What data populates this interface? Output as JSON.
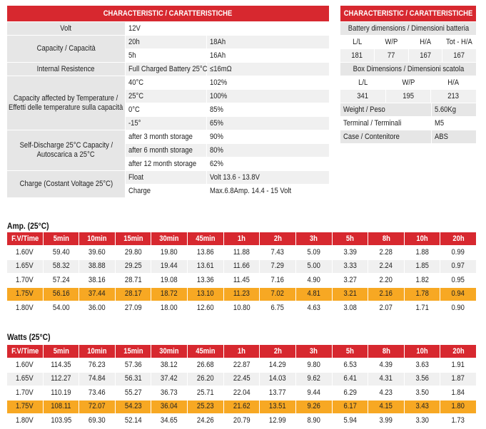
{
  "characteristics": {
    "title": "CHARACTERISTIC / CARATTERISTICHE",
    "groups": [
      {
        "label": [
          "Volt"
        ],
        "rows": [
          [
            "12V"
          ]
        ]
      },
      {
        "label": [
          "Capacity  / Capacità"
        ],
        "rows": [
          [
            "20h",
            "18Ah"
          ],
          [
            "5h",
            "16Ah"
          ]
        ]
      },
      {
        "label": [
          "Internal Resistence"
        ],
        "rows": [
          [
            "Full Charged Battery 25°C",
            "≤16mΩ"
          ]
        ]
      },
      {
        "label": [
          "Capacity affected by Temperature /",
          "Effetti delle temperature sulla capacità"
        ],
        "rows": [
          [
            "40°C",
            "102%"
          ],
          [
            "25°C",
            "100%"
          ],
          [
            "0°C",
            "85%"
          ],
          [
            "-15°",
            "65%"
          ]
        ]
      },
      {
        "label": [
          "Self-Discharge 25°C Capacity /",
          "Autoscarica a 25°C"
        ],
        "rows": [
          [
            "after 3 month storage",
            "90%"
          ],
          [
            "after 6 month storage",
            "80%"
          ],
          [
            "after 12 month storage",
            "62%"
          ]
        ]
      },
      {
        "label": [
          "Charge  (Costant Voltage 25°C)"
        ],
        "rows": [
          [
            "Float",
            "Volt 13.6 - 13.8V"
          ],
          [
            "Charge",
            "Max.6.8Amp. 14.4 - 15 Volt"
          ]
        ]
      }
    ]
  },
  "dimensions": {
    "title": "CHARACTERISTIC / CARATTERISTICHE",
    "battery": {
      "title": "Battery dimensions / Dimensioni batteria",
      "headers": [
        "L/L",
        "W/P",
        "H/A",
        "Tot - H/A"
      ],
      "values": [
        "181",
        "77",
        "167",
        "167"
      ]
    },
    "box": {
      "title": "Box Dimensions / Dimensioni scatola",
      "headers": [
        "L/L",
        "W/P",
        "H/A"
      ],
      "values": [
        "341",
        "195",
        "213"
      ]
    },
    "specs": [
      [
        "Weight / Peso",
        "5.60Kg"
      ],
      [
        "Terminal / Terminali",
        "M5"
      ],
      [
        "Case / Contenitore",
        "ABS"
      ]
    ]
  },
  "amp_table": {
    "title": "Amp. (25°C)",
    "header": [
      "F.V/Time",
      "5min",
      "10min",
      "15min",
      "30min",
      "45min",
      "1h",
      "2h",
      "3h",
      "5h",
      "8h",
      "10h",
      "20h"
    ],
    "rows": [
      [
        "1.60V",
        "59.40",
        "39.60",
        "29.80",
        "19.80",
        "13.86",
        "11.88",
        "7.43",
        "5.09",
        "3.39",
        "2.28",
        "1.88",
        "0.99"
      ],
      [
        "1.65V",
        "58.32",
        "38.88",
        "29.25",
        "19.44",
        "13.61",
        "11.66",
        "7.29",
        "5.00",
        "3.33",
        "2.24",
        "1.85",
        "0.97"
      ],
      [
        "1.70V",
        "57.24",
        "38.16",
        "28.71",
        "19.08",
        "13.36",
        "11.45",
        "7.16",
        "4.90",
        "3.27",
        "2.20",
        "1.82",
        "0.95"
      ],
      [
        "1.75V",
        "56.16",
        "37.44",
        "28.17",
        "18.72",
        "13.10",
        "11.23",
        "7.02",
        "4.81",
        "3.21",
        "2.16",
        "1.78",
        "0.94"
      ],
      [
        "1.80V",
        "54.00",
        "36.00",
        "27.09",
        "18.00",
        "12.60",
        "10.80",
        "6.75",
        "4.63",
        "3.08",
        "2.07",
        "1.71",
        "0.90"
      ]
    ]
  },
  "watts_table": {
    "title": "Watts (25°C)",
    "header": [
      "F.V/Time",
      "5min",
      "10min",
      "15min",
      "30min",
      "45min",
      "1h",
      "2h",
      "3h",
      "5h",
      "8h",
      "10h",
      "20h"
    ],
    "rows": [
      [
        "1.60V",
        "114.35",
        "76.23",
        "57.36",
        "38.12",
        "26.68",
        "22.87",
        "14.29",
        "9.80",
        "6.53",
        "4.39",
        "3.63",
        "1.91"
      ],
      [
        "1.65V",
        "112.27",
        "74.84",
        "56.31",
        "37.42",
        "26.20",
        "22.45",
        "14.03",
        "9.62",
        "6.41",
        "4.31",
        "3.56",
        "1.87"
      ],
      [
        "1.70V",
        "110.19",
        "73.46",
        "55.27",
        "36.73",
        "25.71",
        "22.04",
        "13.77",
        "9.44",
        "6.29",
        "4.23",
        "3.50",
        "1.84"
      ],
      [
        "1.75V",
        "108.11",
        "72.07",
        "54.23",
        "36.04",
        "25.23",
        "21.62",
        "13.51",
        "9.26",
        "6.17",
        "4.15",
        "3.43",
        "1.80"
      ],
      [
        "1.80V",
        "103.95",
        "69.30",
        "52.14",
        "34.65",
        "24.26",
        "20.79",
        "12.99",
        "8.90",
        "5.94",
        "3.99",
        "3.30",
        "1.73"
      ]
    ]
  }
}
